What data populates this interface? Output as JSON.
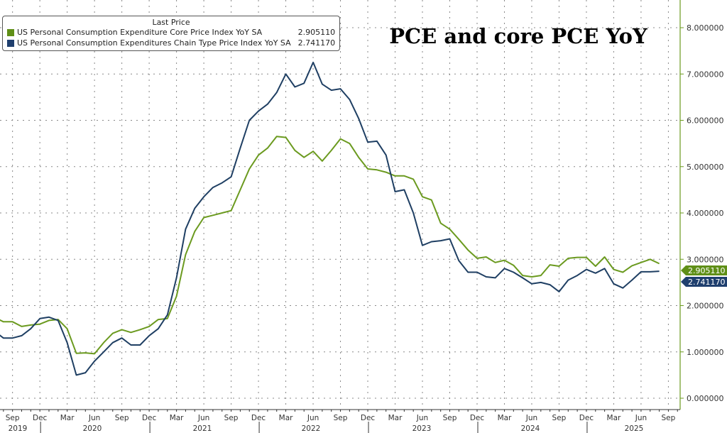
{
  "chart_data": {
    "type": "line",
    "title": "PCE and core PCE YoY",
    "legend_header": "Last Price",
    "legend_position": "top-left",
    "x_start": "2019-07",
    "x_frequency": "monthly",
    "x_end": "2025-08",
    "ylim": [
      0,
      8
    ],
    "grid": true,
    "y_ticks": [
      "0.000000",
      "1.000000",
      "2.000000",
      "3.000000",
      "4.000000",
      "5.000000",
      "6.000000",
      "7.000000",
      "8.000000"
    ],
    "x_month_ticks": [
      "Sep",
      "Dec",
      "Mar",
      "Jun",
      "Sep",
      "Dec",
      "Mar",
      "Jun",
      "Sep",
      "Dec",
      "Mar",
      "Jun",
      "Sep",
      "Dec",
      "Mar",
      "Jun",
      "Sep",
      "Dec",
      "Mar",
      "Jun",
      "Sep",
      "Dec",
      "Mar",
      "Jun",
      "Sep"
    ],
    "x_year_labels": [
      "2019",
      "2020",
      "2021",
      "2022",
      "2023",
      "2024",
      "2025"
    ],
    "series": [
      {
        "name": "US Personal Consumption Expenditure Core Price Index YoY SA",
        "last": "2.905110",
        "color": "#6b9a1f",
        "values": [
          1.75,
          1.65,
          1.65,
          1.55,
          1.58,
          1.6,
          1.68,
          1.7,
          1.5,
          0.97,
          0.98,
          0.96,
          1.2,
          1.4,
          1.48,
          1.42,
          1.48,
          1.55,
          1.7,
          1.72,
          2.2,
          3.1,
          3.6,
          3.9,
          3.95,
          4.0,
          4.05,
          4.5,
          4.95,
          5.25,
          5.4,
          5.65,
          5.63,
          5.35,
          5.2,
          5.33,
          5.12,
          5.35,
          5.6,
          5.5,
          5.2,
          4.95,
          4.93,
          4.88,
          4.8,
          4.8,
          4.73,
          4.35,
          4.28,
          3.78,
          3.65,
          3.43,
          3.2,
          3.02,
          3.05,
          2.93,
          2.98,
          2.87,
          2.65,
          2.62,
          2.65,
          2.88,
          2.85,
          3.02,
          3.04,
          3.04,
          2.85,
          3.05,
          2.78,
          2.72,
          2.86,
          2.93,
          3.0,
          2.905
        ]
      },
      {
        "name": "US Personal Consumption Expenditures Chain Type Price Index YoY SA",
        "last": "2.741170",
        "color": "#1f3f63",
        "values": [
          1.45,
          1.3,
          1.3,
          1.35,
          1.5,
          1.72,
          1.75,
          1.68,
          1.2,
          0.5,
          0.55,
          0.8,
          1.0,
          1.2,
          1.3,
          1.15,
          1.15,
          1.35,
          1.5,
          1.8,
          2.6,
          3.65,
          4.1,
          4.35,
          4.55,
          4.65,
          4.78,
          5.4,
          6.0,
          6.2,
          6.35,
          6.6,
          7.0,
          6.72,
          6.8,
          7.25,
          6.78,
          6.65,
          6.68,
          6.45,
          6.04,
          5.53,
          5.55,
          5.25,
          4.46,
          4.5,
          4.0,
          3.3,
          3.38,
          3.4,
          3.44,
          2.97,
          2.72,
          2.72,
          2.62,
          2.6,
          2.8,
          2.72,
          2.6,
          2.47,
          2.5,
          2.45,
          2.3,
          2.55,
          2.65,
          2.78,
          2.7,
          2.8,
          2.47,
          2.38,
          2.55,
          2.73,
          2.73,
          2.741
        ]
      }
    ]
  }
}
